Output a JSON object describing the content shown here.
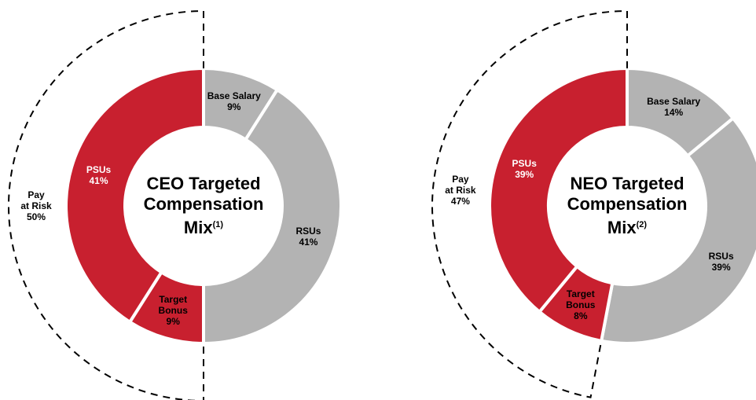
{
  "chart_data": [
    {
      "type": "donut",
      "title_lines": [
        "CEO Targeted",
        "Compensation",
        "Mix"
      ],
      "title_note": "(1)",
      "categories": [
        "Base Salary",
        "RSUs",
        "Target Bonus",
        "PSUs"
      ],
      "values": [
        9,
        41,
        9,
        41
      ],
      "value_labels": [
        "9%",
        "41%",
        "9%",
        "41%"
      ],
      "colors": [
        "#b3b3b3",
        "#b3b3b3",
        "#c8202f",
        "#c8202f"
      ],
      "label_colors": [
        "#000000",
        "#000000",
        "#000000",
        "#ffffff"
      ],
      "pay_at_risk": {
        "lines": [
          "Pay",
          "at Risk"
        ],
        "value": 50,
        "value_label": "50%"
      }
    },
    {
      "type": "donut",
      "title_lines": [
        "NEO Targeted",
        "Compensation",
        "Mix"
      ],
      "title_note": "(2)",
      "categories": [
        "Base Salary",
        "RSUs",
        "Target Bonus",
        "PSUs"
      ],
      "values": [
        14,
        39,
        8,
        39
      ],
      "value_labels": [
        "14%",
        "39%",
        "8%",
        "39%"
      ],
      "colors": [
        "#b3b3b3",
        "#b3b3b3",
        "#c8202f",
        "#c8202f"
      ],
      "label_colors": [
        "#000000",
        "#000000",
        "#000000",
        "#ffffff"
      ],
      "pay_at_risk": {
        "lines": [
          "Pay",
          "at Risk"
        ],
        "value": 47,
        "value_label": "47%"
      }
    }
  ]
}
